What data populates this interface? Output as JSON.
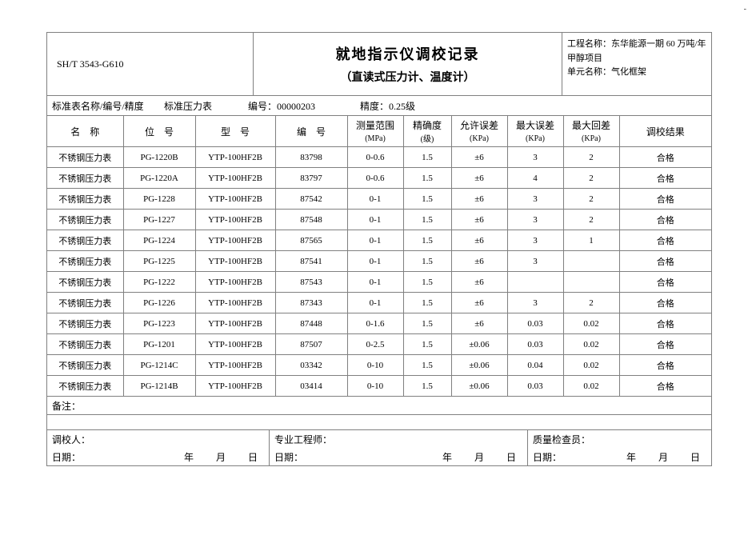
{
  "meta": {
    "std_code": "SH/T 3543-G610",
    "title_main": "就地指示仪调校记录",
    "title_sub": "（直读式压力计、温度计）",
    "project_label": "工程名称：",
    "project_name": "东华能源一期 60 万吨/年甲醇项目",
    "unit_label": "单元名称：",
    "unit_name": "气化框架"
  },
  "std_bar": {
    "label": "标准表名称/编号/精度",
    "name": "标准压力表",
    "code_label": "编号：",
    "code": "00000203",
    "acc_label": "精度：",
    "acc": "0.25级"
  },
  "columns": {
    "c0": "名　称",
    "c1": "位　号",
    "c2": "型　号",
    "c3": "编　号",
    "c4": "测量范围",
    "c4s": "(MPa)",
    "c5": "精确度",
    "c5s": "(级)",
    "c6": "允许误差",
    "c6s": "(KPa)",
    "c7": "最大误差",
    "c7s": "(KPa)",
    "c8": "最大回差",
    "c8s": "(KPa)",
    "c9": "调校结果"
  },
  "rows": [
    {
      "name": "不锈钢压力表",
      "tag": "PG-1220B",
      "model": "YTP-100HF2B",
      "sn": "83798",
      "range": "0-0.6",
      "acc": "1.5",
      "tol": "±6",
      "maxerr": "3",
      "maxhys": "2",
      "result": "合格"
    },
    {
      "name": "不锈钢压力表",
      "tag": "PG-1220A",
      "model": "YTP-100HF2B",
      "sn": "83797",
      "range": "0-0.6",
      "acc": "1.5",
      "tol": "±6",
      "maxerr": "4",
      "maxhys": "2",
      "result": "合格"
    },
    {
      "name": "不锈钢压力表",
      "tag": "PG-1228",
      "model": "YTP-100HF2B",
      "sn": "87542",
      "range": "0-1",
      "acc": "1.5",
      "tol": "±6",
      "maxerr": "3",
      "maxhys": "2",
      "result": "合格"
    },
    {
      "name": "不锈钢压力表",
      "tag": "PG-1227",
      "model": "YTP-100HF2B",
      "sn": "87548",
      "range": "0-1",
      "acc": "1.5",
      "tol": "±6",
      "maxerr": "3",
      "maxhys": "2",
      "result": "合格"
    },
    {
      "name": "不锈钢压力表",
      "tag": "PG-1224",
      "model": "YTP-100HF2B",
      "sn": "87565",
      "range": "0-1",
      "acc": "1.5",
      "tol": "±6",
      "maxerr": "3",
      "maxhys": "1",
      "result": "合格"
    },
    {
      "name": "不锈钢压力表",
      "tag": "PG-1225",
      "model": "YTP-100HF2B",
      "sn": "87541",
      "range": "0-1",
      "acc": "1.5",
      "tol": "±6",
      "maxerr": "3",
      "maxhys": "",
      "result": "合格"
    },
    {
      "name": "不锈钢压力表",
      "tag": "PG-1222",
      "model": "YTP-100HF2B",
      "sn": "87543",
      "range": "0-1",
      "acc": "1.5",
      "tol": "±6",
      "maxerr": "",
      "maxhys": "",
      "result": "合格"
    },
    {
      "name": "不锈钢压力表",
      "tag": "PG-1226",
      "model": "YTP-100HF2B",
      "sn": "87343",
      "range": "0-1",
      "acc": "1.5",
      "tol": "±6",
      "maxerr": "3",
      "maxhys": "2",
      "result": "合格"
    },
    {
      "name": "不锈钢压力表",
      "tag": "PG-1223",
      "model": "YTP-100HF2B",
      "sn": "87448",
      "range": "0-1.6",
      "acc": "1.5",
      "tol": "±6",
      "maxerr": "0.03",
      "maxhys": "0.02",
      "result": "合格"
    },
    {
      "name": "不锈钢压力表",
      "tag": "PG-1201",
      "model": "YTP-100HF2B",
      "sn": "87507",
      "range": "0-2.5",
      "acc": "1.5",
      "tol": "±0.06",
      "maxerr": "0.03",
      "maxhys": "0.02",
      "result": "合格"
    },
    {
      "name": "不锈钢压力表",
      "tag": "PG-1214C",
      "model": "YTP-100HF2B",
      "sn": "03342",
      "range": "0-10",
      "acc": "1.5",
      "tol": "±0.06",
      "maxerr": "0.04",
      "maxhys": "0.02",
      "result": "合格"
    },
    {
      "name": "不锈钢压力表",
      "tag": "PG-1214B",
      "model": "YTP-100HF2B",
      "sn": "03414",
      "range": "0-10",
      "acc": "1.5",
      "tol": "±0.06",
      "maxerr": "0.03",
      "maxhys": "0.02",
      "result": "合格"
    }
  ],
  "remarks_label": "备注：",
  "sign": {
    "calibrator": "调校人：",
    "engineer": "专业工程师：",
    "qc": "质量检查员：",
    "date_label": "日期：",
    "ymd": "年　月　日"
  },
  "page_mark": "-"
}
